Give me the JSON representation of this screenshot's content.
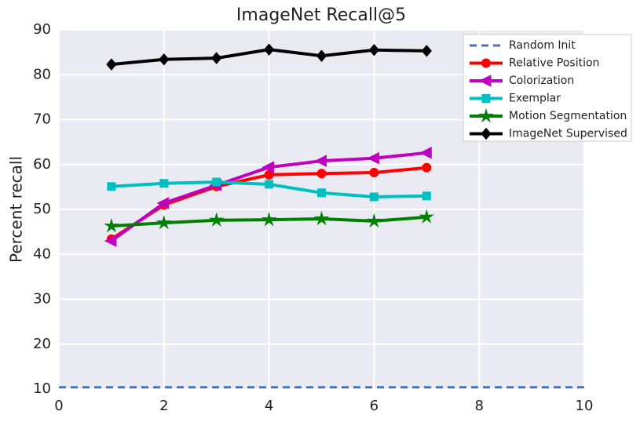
{
  "chart_data": {
    "type": "line",
    "title": "ImageNet Recall@5",
    "y_label": "Percent recall",
    "x": [
      1,
      2,
      3,
      4,
      5,
      6,
      7
    ],
    "series": [
      {
        "name": "Random Init",
        "color": "#4c72b0",
        "linestyle": "dashed",
        "marker": "none",
        "x": [
          0,
          10
        ],
        "values": [
          10.4,
          10.4
        ]
      },
      {
        "name": "Relative Position",
        "color": "#ff0000",
        "marker": "circle",
        "values": [
          43.4,
          51.0,
          55.1,
          57.7,
          58.0,
          58.2,
          59.3
        ]
      },
      {
        "name": "Colorization",
        "color": "#bf00bf",
        "marker": "triangle-left",
        "values": [
          43.0,
          51.4,
          55.4,
          59.4,
          60.8,
          61.4,
          62.6
        ]
      },
      {
        "name": "Exemplar",
        "color": "#00bfbf",
        "marker": "square",
        "values": [
          55.1,
          55.8,
          56.1,
          55.6,
          53.7,
          52.8,
          53.0
        ]
      },
      {
        "name": "Motion Segmentation",
        "color": "#008000",
        "marker": "star",
        "values": [
          46.3,
          47.0,
          47.6,
          47.7,
          47.9,
          47.4,
          48.3
        ]
      },
      {
        "name": "ImageNet Supervised",
        "color": "#000000",
        "marker": "diamond",
        "values": [
          82.3,
          83.4,
          83.7,
          85.6,
          84.2,
          85.5,
          85.3
        ]
      }
    ],
    "xlim": [
      0,
      10
    ],
    "xticks": [
      0,
      2,
      4,
      6,
      8,
      10
    ],
    "ylim": [
      10,
      90
    ],
    "yticks": [
      10,
      20,
      30,
      40,
      50,
      60,
      70,
      80,
      90
    ],
    "grid": true,
    "legend": "upper right"
  }
}
